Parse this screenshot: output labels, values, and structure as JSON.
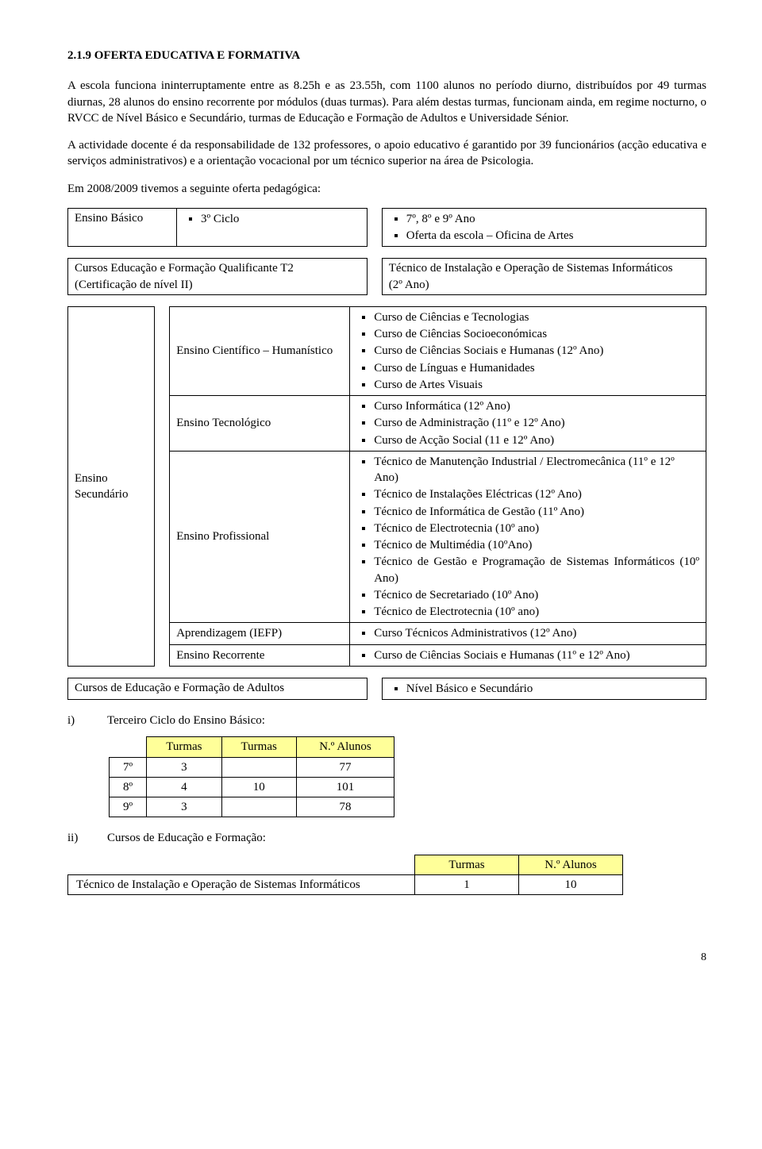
{
  "section": {
    "number": "2.1.9",
    "title": "OFERTA EDUCATIVA E FORMATIVA"
  },
  "paragraphs": {
    "p1": "A escola funciona ininterruptamente entre as 8.25h e as 23.55h, com 1100 alunos no período diurno, distribuídos por 49 turmas diurnas, 28 alunos do ensino recorrente por módulos (duas turmas). Para além destas turmas, funcionam ainda, em regime nocturno, o RVCC de Nível Básico e Secundário, turmas de Educação e Formação de Adultos e Universidade Sénior.",
    "p2": "A actividade docente é da responsabilidade de 132 professores, o apoio educativo é garantido por 39 funcionários (acção educativa e serviços administrativos) e a orientação vocacional por um técnico superior na área de Psicologia.",
    "p3": "Em 2008/2009 tivemos a seguinte oferta pedagógica:"
  },
  "row1": {
    "left_label": "Ensino Básico",
    "left_sub": "3º Ciclo",
    "right_items": [
      "7º, 8º e 9º Ano",
      "Oferta da escola – Oficina de Artes"
    ]
  },
  "row2": {
    "left_line1": "Cursos Educação e Formação Qualificante T2",
    "left_line2": "(Certificação de nível II)",
    "right_line1": "Técnico de Instalação e Operação de Sistemas Informáticos",
    "right_line2": "(2º Ano)"
  },
  "secundario": {
    "side_label": "Ensino Secundário",
    "rows": [
      {
        "cat": "Ensino Científico – Humanístico",
        "items": [
          "Curso de Ciências e Tecnologias",
          "Curso de Ciências Socioeconómicas",
          "Curso de Ciências Sociais e Humanas (12º Ano)",
          "Curso de Línguas e Humanidades",
          "Curso de Artes Visuais"
        ]
      },
      {
        "cat": "Ensino  Tecnológico",
        "items": [
          "Curso Informática (12º Ano)",
          "Curso de Administração (11º e 12º Ano)",
          "Curso de Acção Social (11 e 12º Ano)"
        ]
      },
      {
        "cat": "Ensino Profissional",
        "items": [
          "Técnico de Manutenção Industrial / Electromecânica (11º e 12º Ano)",
          "Técnico de Instalações Eléctricas (12º Ano)",
          "Técnico de Informática de Gestão (11º Ano)",
          "Técnico de Electrotecnia (10º ano)",
          "Técnico de Multimédia (10ºAno)",
          "Técnico de Gestão e Programação de Sistemas Informáticos (10º Ano)",
          "Técnico de Secretariado (10º Ano)",
          "Técnico de Electrotecnia (10º ano)"
        ]
      },
      {
        "cat": "Aprendizagem (IEFP)",
        "items": [
          "Curso Técnicos Administrativos (12º Ano)"
        ]
      },
      {
        "cat": "Ensino  Recorrente",
        "items": [
          "Curso de Ciências Sociais e Humanas (11º e 12º Ano)"
        ]
      }
    ]
  },
  "row4": {
    "left": "Cursos de Educação e Formação de Adultos",
    "right_item": "Nível Básico e Secundário"
  },
  "listI": {
    "roman": "i)",
    "title": "Terceiro Ciclo do Ensino Básico:",
    "headers": [
      "Turmas",
      "Turmas",
      "N.º Alunos"
    ],
    "rows": [
      {
        "grade": "7º",
        "c1": "3",
        "c2": "",
        "c3": "77"
      },
      {
        "grade": "8º",
        "c1": "4",
        "c2": "10",
        "c3": "101"
      },
      {
        "grade": "9º",
        "c1": "3",
        "c2": "",
        "c3": "78"
      }
    ]
  },
  "listII": {
    "roman": "ii)",
    "title": "Cursos de Educação e Formação:",
    "headers": [
      "Turmas",
      "N.º Alunos"
    ],
    "row_label": "Técnico de Instalação e Operação de Sistemas Informáticos",
    "c1": "1",
    "c2": "10"
  },
  "page_number": "8",
  "colors": {
    "header_bg": "#ffff99",
    "text": "#000000",
    "bg": "#ffffff"
  }
}
